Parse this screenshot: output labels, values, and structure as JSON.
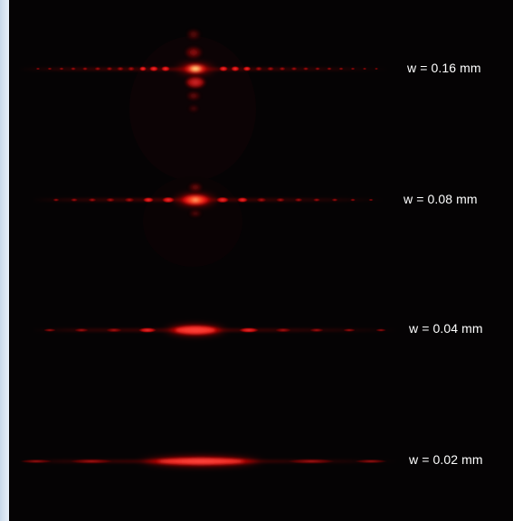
{
  "image": {
    "labels": [
      "w = 0.16 mm",
      "w = 0.08 mm",
      "w = 0.04 mm",
      "w = 0.02 mm"
    ]
  },
  "colors": {
    "background": "#050304",
    "border": "#dbe6f2",
    "laser": "#ff2a2a",
    "hot_core": "#fff0a0",
    "text": "#ffffff"
  }
}
